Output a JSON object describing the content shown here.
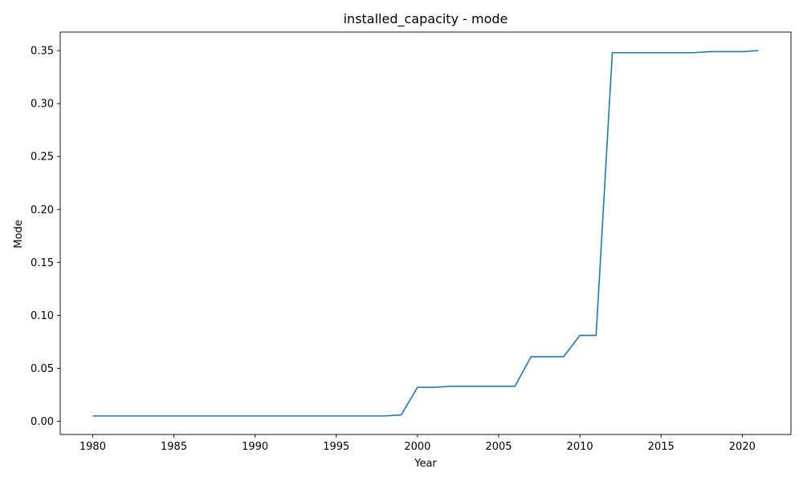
{
  "chart_data": {
    "type": "line",
    "title": "installed_capacity - mode",
    "xlabel": "Year",
    "ylabel": "Mode",
    "xlim": [
      1978,
      2023
    ],
    "ylim": [
      -0.0125,
      0.3675
    ],
    "xticks": [
      1980,
      1985,
      1990,
      1995,
      2000,
      2005,
      2010,
      2015,
      2020
    ],
    "xtick_labels": [
      "1980",
      "1985",
      "1990",
      "1995",
      "2000",
      "2005",
      "2010",
      "2015",
      "2020"
    ],
    "yticks": [
      0.0,
      0.05,
      0.1,
      0.15,
      0.2,
      0.25,
      0.3,
      0.35
    ],
    "ytick_labels": [
      "0.00",
      "0.05",
      "0.10",
      "0.15",
      "0.20",
      "0.25",
      "0.30",
      "0.35"
    ],
    "grid": false,
    "series": [
      {
        "color": "#1f77b4",
        "x": [
          1980,
          1981,
          1982,
          1983,
          1984,
          1985,
          1986,
          1987,
          1988,
          1989,
          1990,
          1991,
          1992,
          1993,
          1994,
          1995,
          1996,
          1997,
          1998,
          1999,
          2000,
          2001,
          2002,
          2003,
          2004,
          2005,
          2006,
          2007,
          2008,
          2009,
          2010,
          2011,
          2012,
          2013,
          2014,
          2015,
          2016,
          2017,
          2018,
          2019,
          2020,
          2021
        ],
        "y": [
          0.005,
          0.005,
          0.005,
          0.005,
          0.005,
          0.005,
          0.005,
          0.005,
          0.005,
          0.005,
          0.005,
          0.005,
          0.005,
          0.005,
          0.005,
          0.005,
          0.005,
          0.005,
          0.005,
          0.006,
          0.032,
          0.032,
          0.033,
          0.033,
          0.033,
          0.033,
          0.033,
          0.061,
          0.061,
          0.061,
          0.081,
          0.081,
          0.348,
          0.348,
          0.348,
          0.348,
          0.348,
          0.348,
          0.349,
          0.349,
          0.349,
          0.35
        ]
      }
    ]
  }
}
